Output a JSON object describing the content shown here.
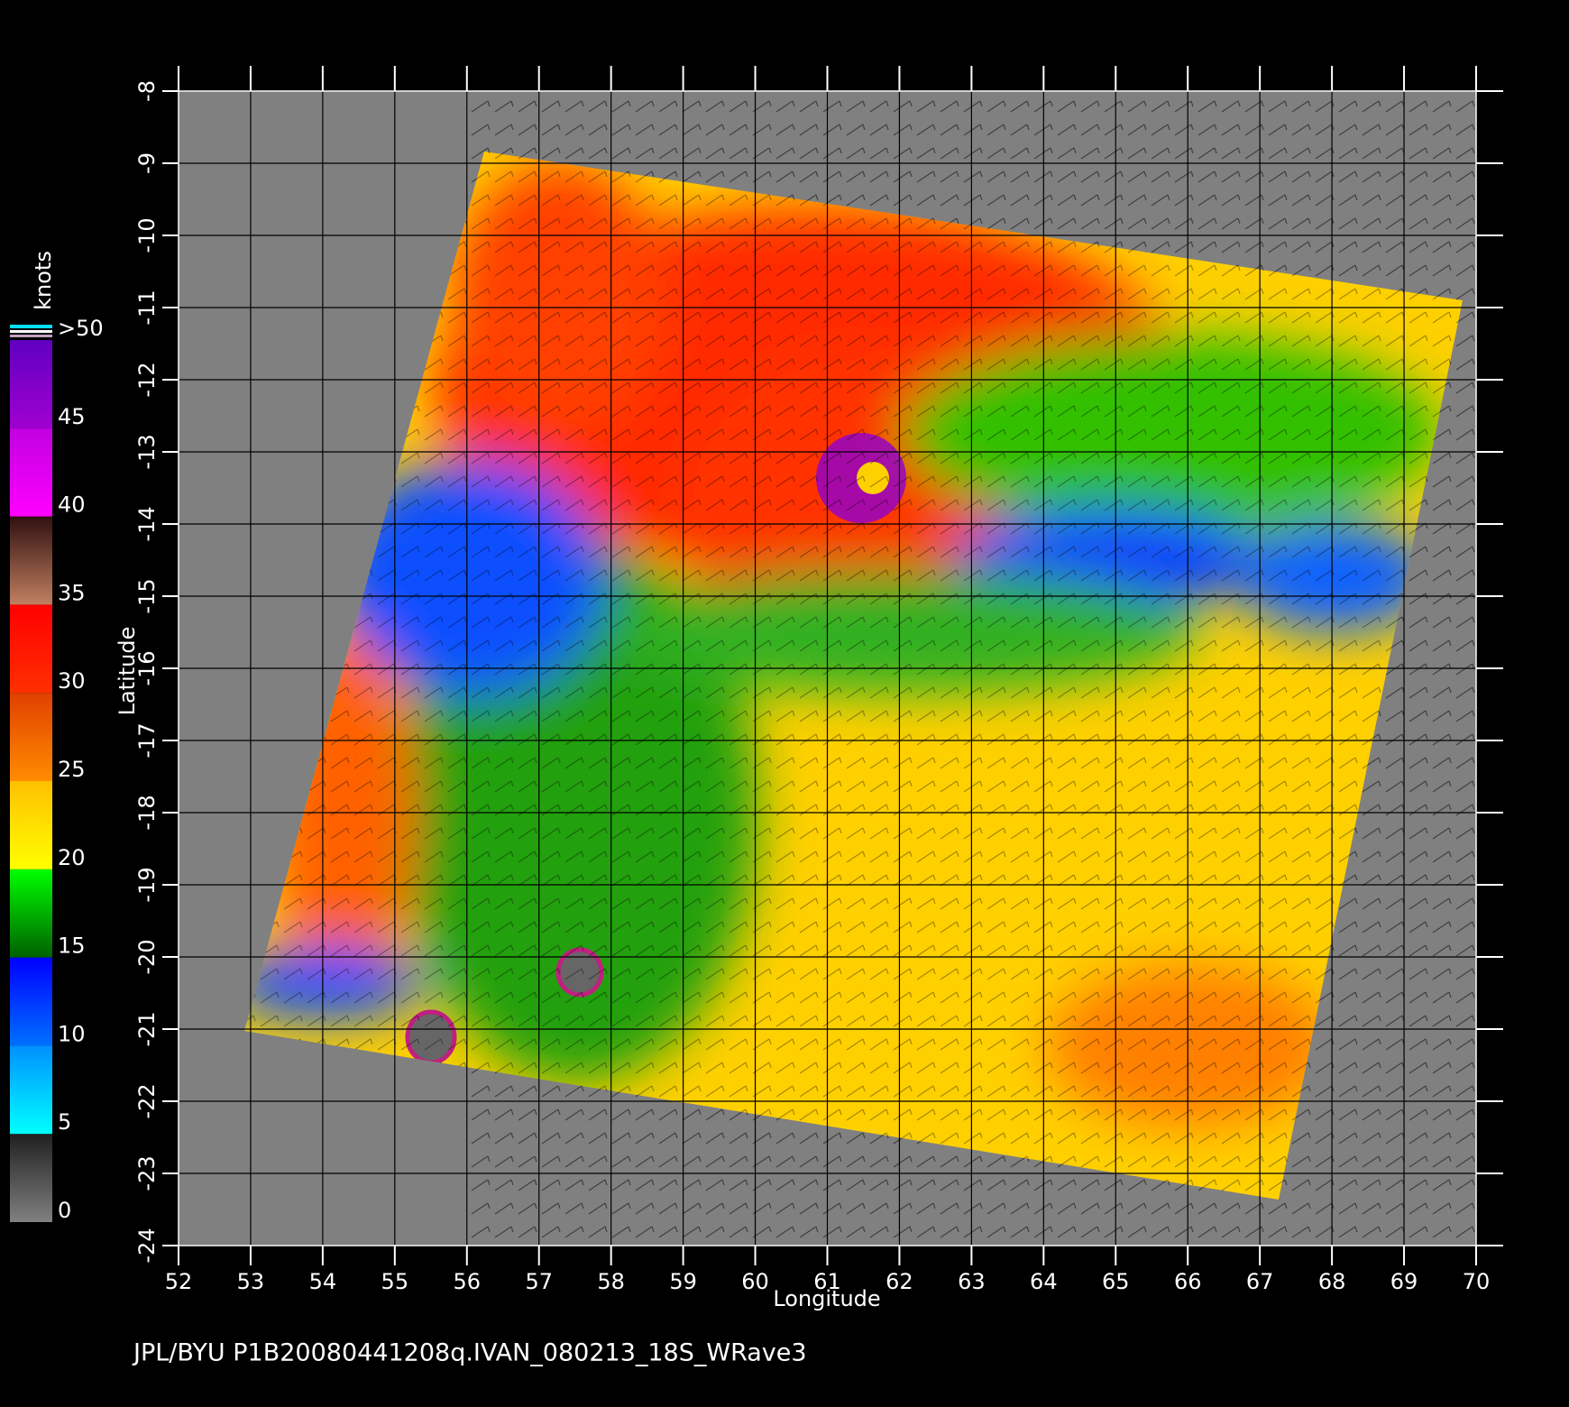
{
  "map": {
    "xlabel": "Longitude",
    "ylabel": "Latitude",
    "xlim": [
      52,
      70
    ],
    "ylim": [
      -24,
      -8
    ],
    "xticks": [
      52,
      53,
      54,
      55,
      56,
      57,
      58,
      59,
      60,
      61,
      62,
      63,
      64,
      65,
      66,
      67,
      68,
      69,
      70
    ],
    "yticks": [
      -24,
      -23,
      -22,
      -21,
      -20,
      -19,
      -18,
      -17,
      -16,
      -15,
      -14,
      -13,
      -12,
      -11,
      -10,
      -9,
      -8
    ],
    "grid": true,
    "colorbar": {
      "title": "knots",
      "range": [
        0,
        50
      ],
      "ticks": [
        0,
        5,
        10,
        15,
        20,
        25,
        30,
        35,
        40,
        45,
        {
          "value": 50,
          "label": ">50"
        }
      ],
      "colors": [
        [
          "#808080",
          "#202020"
        ],
        [
          "#00ffff",
          "#0090ff"
        ],
        [
          "#0070ff",
          "#0000ff"
        ],
        [
          "#006000",
          "#00ff00"
        ],
        [
          "#ffff00",
          "#ffc000"
        ],
        [
          "#ff8c00",
          "#e04000"
        ],
        [
          "#ff3000",
          "#ff0000"
        ],
        [
          "#c08060",
          "#301010"
        ],
        [
          "#ff00ff",
          "#c000e0"
        ],
        [
          "#a000d0",
          "#6000c0"
        ]
      ]
    },
    "footer": "JPL/BYU  P1B20080441208q.IVAN_080213_18S_WRave3"
  }
}
